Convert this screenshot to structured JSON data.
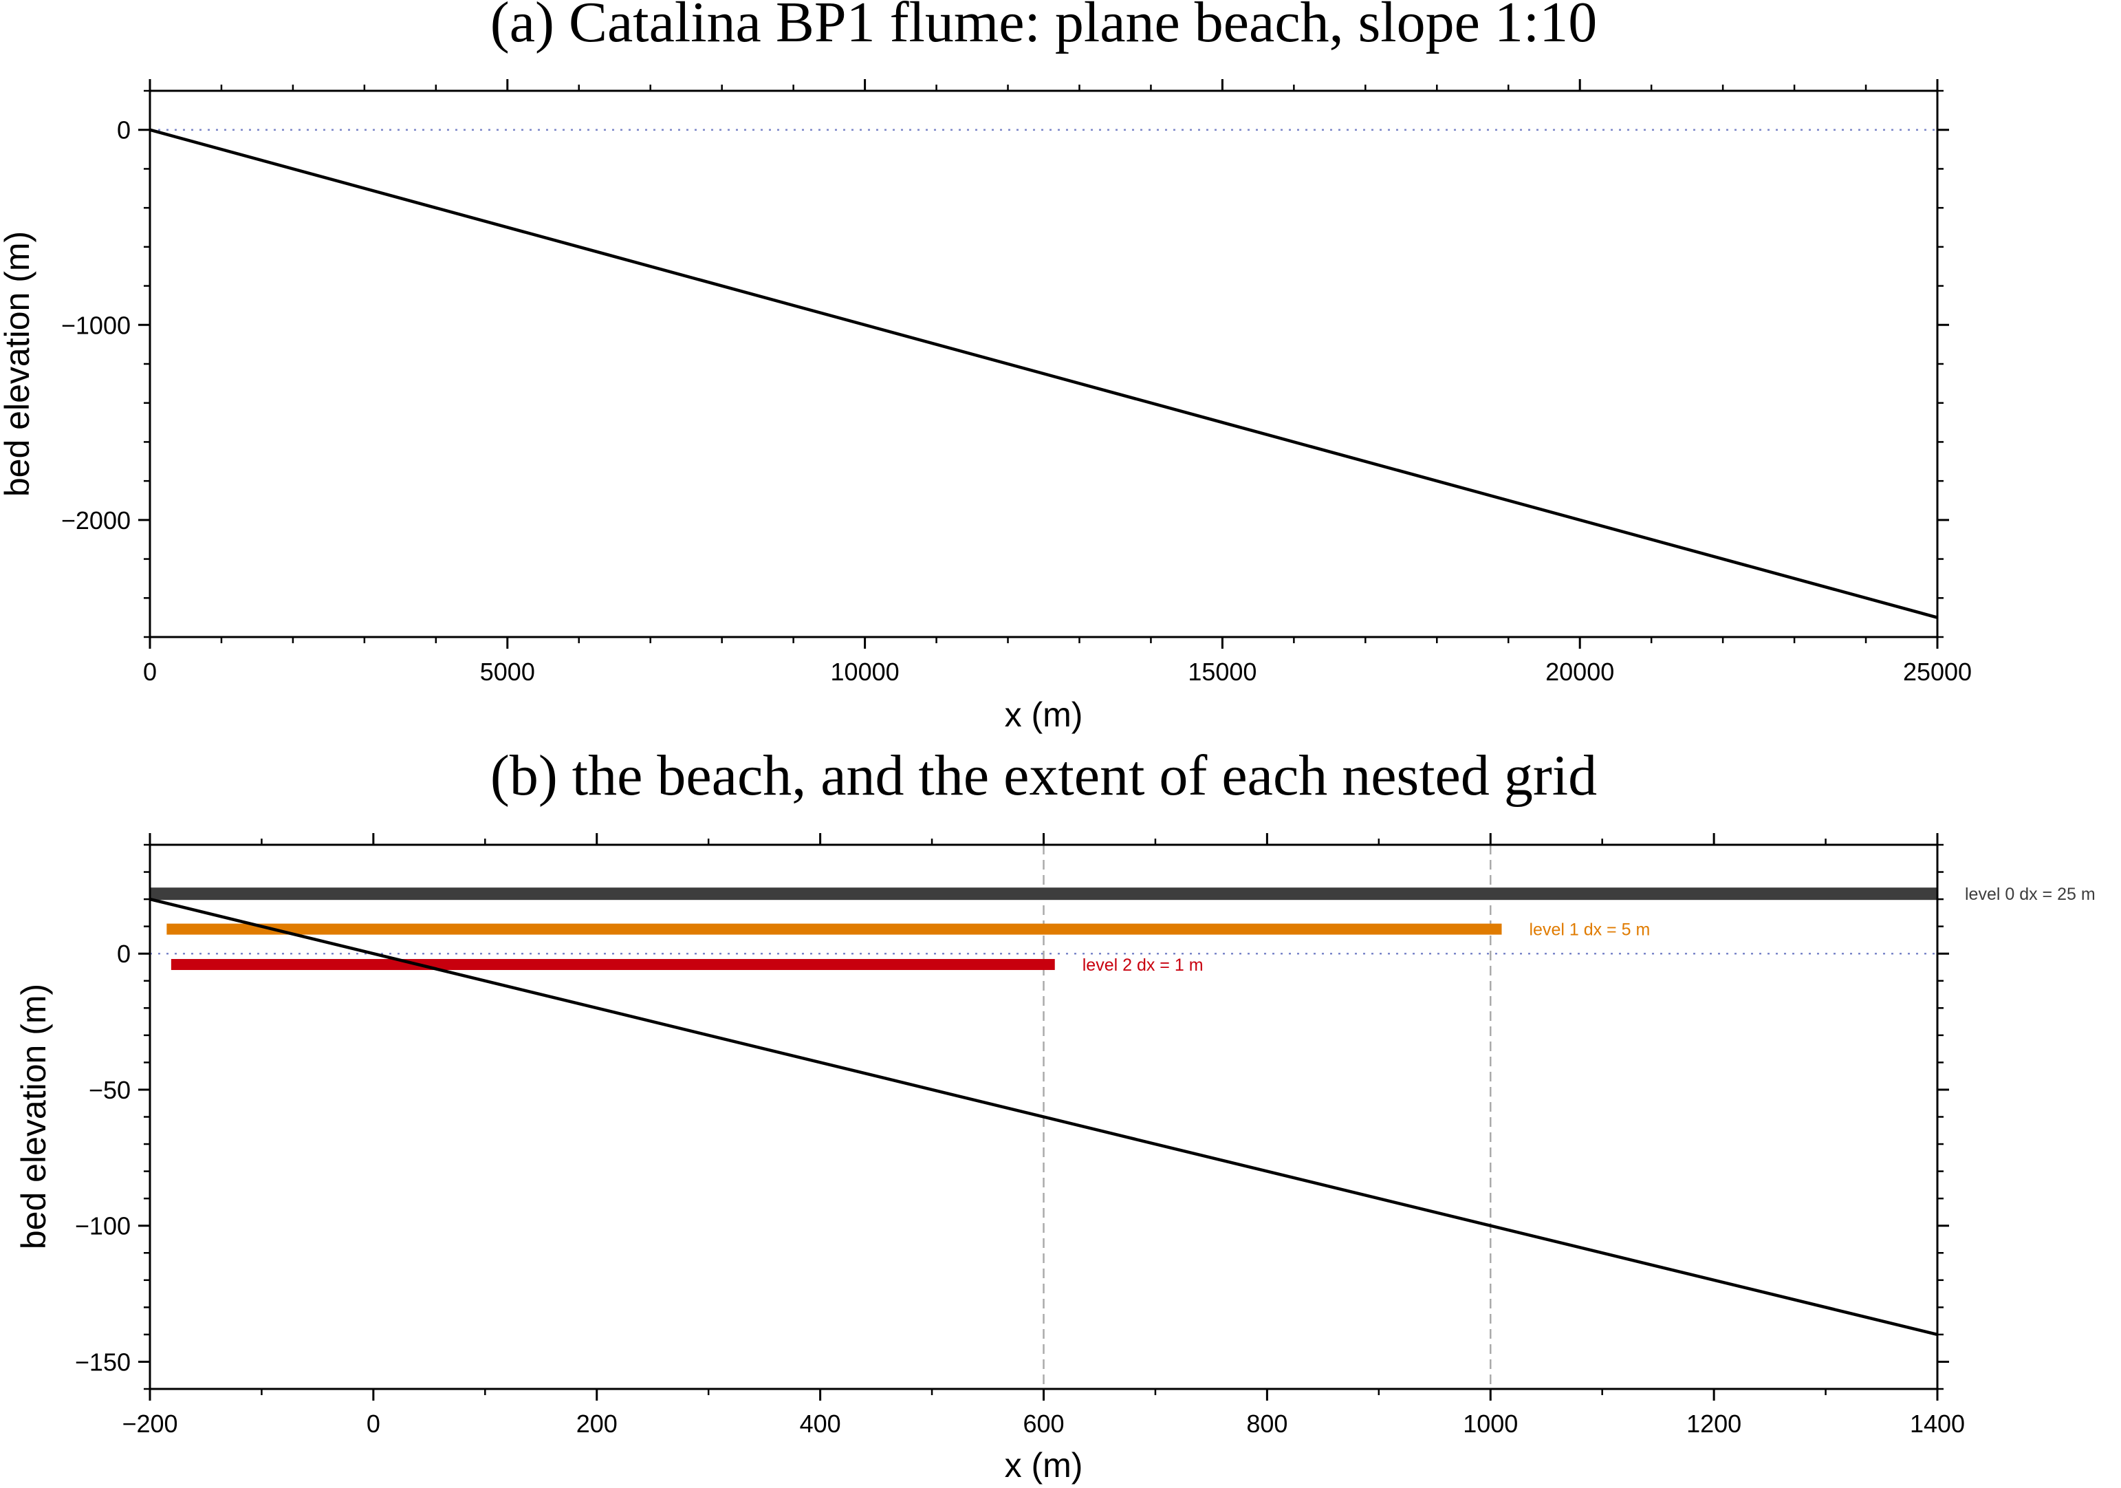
{
  "chart_data": [
    {
      "type": "line",
      "title": "(a) Catalina BP1 flume: plane beach, slope 1:10",
      "xlabel": "x (m)",
      "ylabel": "bed elevation (m)",
      "xlim": [
        0,
        25000
      ],
      "ylim": [
        -2600,
        200
      ],
      "x_ticks": [
        0,
        5000,
        10000,
        15000,
        20000,
        25000
      ],
      "x_tick_labels": [
        "0",
        "5000",
        "10000",
        "15000",
        "20000",
        "25000"
      ],
      "y_ticks": [
        0,
        -1000,
        -2000
      ],
      "y_tick_labels": [
        "0",
        "−1000",
        "−2000"
      ],
      "x_minor_step": 1000,
      "y_minor_step": 200,
      "series": [
        {
          "x": [
            0,
            25000
          ],
          "y": [
            0,
            -2500
          ],
          "color": "#000000"
        }
      ],
      "reference_lines": [
        {
          "orientation": "horizontal",
          "value": 0,
          "style": "dotted",
          "color": "#7b86c9"
        }
      ]
    },
    {
      "type": "line",
      "title": "(b) the beach, and the extent of each nested grid",
      "xlabel": "x (m)",
      "ylabel": "bed elevation (m)",
      "xlim": [
        -200,
        1400
      ],
      "ylim": [
        -160,
        40
      ],
      "x_ticks": [
        -200,
        0,
        200,
        400,
        600,
        800,
        1000,
        1200,
        1400
      ],
      "x_tick_labels": [
        "−200",
        "0",
        "200",
        "400",
        "600",
        "800",
        "1000",
        "1200",
        "1400"
      ],
      "y_ticks": [
        0,
        -50,
        -100,
        -150
      ],
      "y_tick_labels": [
        "0",
        "−50",
        "−100",
        "−150"
      ],
      "x_minor_step": 100,
      "y_minor_step": 10,
      "series": [
        {
          "x": [
            -200,
            1400
          ],
          "y": [
            20,
            -140
          ],
          "color": "#000000"
        }
      ],
      "reference_lines": [
        {
          "orientation": "horizontal",
          "value": 0,
          "style": "dotted",
          "color": "#7b86c9"
        },
        {
          "orientation": "vertical",
          "value": 600,
          "style": "dashed",
          "color": "#aaaaaa"
        },
        {
          "orientation": "vertical",
          "value": 1000,
          "style": "dashed",
          "color": "#aaaaaa"
        }
      ],
      "grid_bars": [
        {
          "x_start": -200,
          "x_end": 1400,
          "y": 22,
          "color": "#3d3d3d",
          "label": "level 0  dx = 25 m"
        },
        {
          "x_start": -185,
          "x_end": 1010,
          "y": 9,
          "color": "#e07b00",
          "label": "level 1  dx = 5 m"
        },
        {
          "x_start": -181,
          "x_end": 610,
          "y": -4,
          "color": "#c8000e",
          "label": "level 2  dx = 1 m"
        }
      ]
    }
  ]
}
